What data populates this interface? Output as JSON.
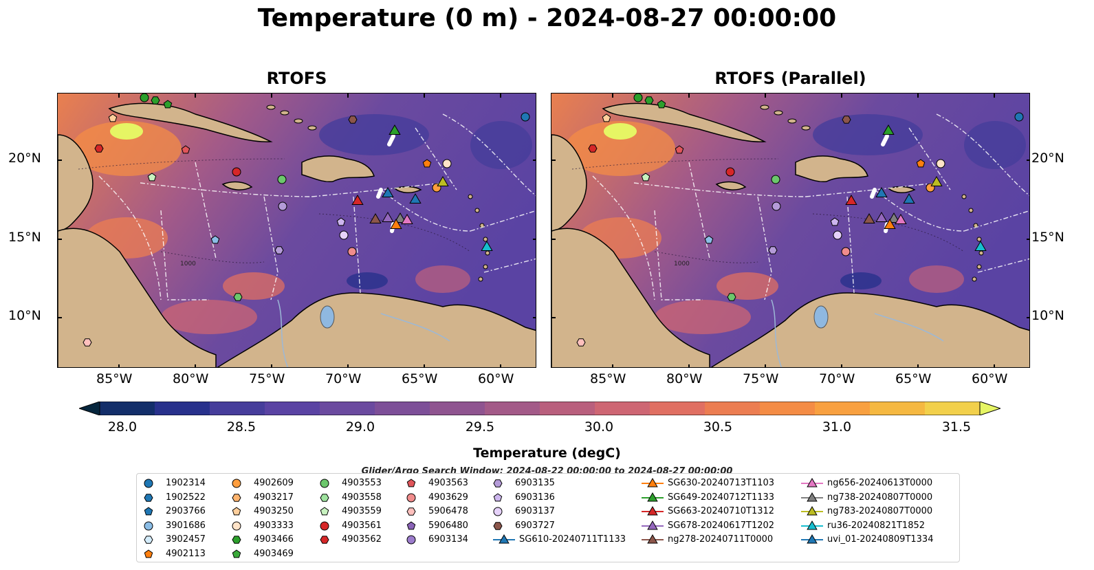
{
  "title": "Temperature (0 m) - 2024-08-27 00:00:00",
  "panels": [
    {
      "title": "RTOFS"
    },
    {
      "title": "RTOFS (Parallel)"
    }
  ],
  "axes": {
    "lat_labels": [
      "20°N",
      "15°N",
      "10°N"
    ],
    "lon_labels": [
      "85°W",
      "80°W",
      "75°W",
      "70°W",
      "65°W",
      "60°W"
    ]
  },
  "map_annotation": "1000",
  "colorbar": {
    "title": "Temperature (degC)",
    "tick_labels": [
      "28.0",
      "28.5",
      "29.0",
      "29.5",
      "30.0",
      "30.5",
      "31.0",
      "31.5"
    ],
    "colors": [
      "#06263d",
      "#132e6a",
      "#28318c",
      "#463d9b",
      "#5a43a3",
      "#6b4a9f",
      "#7d4f98",
      "#8f5490",
      "#a35a88",
      "#b95f7d",
      "#ce6673",
      "#e06f62",
      "#ec7d51",
      "#f48c45",
      "#f8a040",
      "#f5b841",
      "#f2d04b",
      "#e6f564"
    ]
  },
  "search_window": "Glider/Argo Search Window: 2024-08-22 00:00:00 to 2024-08-27 00:00:00",
  "legend": {
    "columns": [
      [
        {
          "label": "1902314",
          "marker": "circle",
          "color": "#1f77b4"
        },
        {
          "label": "1902522",
          "marker": "hexagon",
          "color": "#1f77b4"
        },
        {
          "label": "2903766",
          "marker": "pentagon",
          "color": "#1f77b4"
        },
        {
          "label": "3901686",
          "marker": "circle",
          "color": "#8bbde6"
        },
        {
          "label": "3902457",
          "marker": "hexagon",
          "color": "#d4ecfb"
        },
        {
          "label": "4902113",
          "marker": "pentagon",
          "color": "#ff7f0e"
        }
      ],
      [
        {
          "label": "4902609",
          "marker": "circle",
          "color": "#ff9e3e"
        },
        {
          "label": "4903217",
          "marker": "hexagon",
          "color": "#ffb46e"
        },
        {
          "label": "4903250",
          "marker": "pentagon",
          "color": "#ffcf9c"
        },
        {
          "label": "4903333",
          "marker": "circle",
          "color": "#ffe3c8"
        },
        {
          "label": "4903466",
          "marker": "hexagon",
          "color": "#2ca02c"
        },
        {
          "label": "4903469",
          "marker": "pentagon",
          "color": "#3aaa3a"
        }
      ],
      [
        {
          "label": "4903553",
          "marker": "circle",
          "color": "#6cc76c"
        },
        {
          "label": "4903558",
          "marker": "hexagon",
          "color": "#9ee29e"
        },
        {
          "label": "4903559",
          "marker": "pentagon",
          "color": "#c8f2c0"
        },
        {
          "label": "4903561",
          "marker": "circle",
          "color": "#d62728"
        },
        {
          "label": "4903562",
          "marker": "hexagon",
          "color": "#d62728"
        }
      ],
      [
        {
          "label": "4903563",
          "marker": "pentagon",
          "color": "#e0555a"
        },
        {
          "label": "4903629",
          "marker": "circle",
          "color": "#f08c8c"
        },
        {
          "label": "5906478",
          "marker": "hexagon",
          "color": "#ffc0bd"
        },
        {
          "label": "5906480",
          "marker": "pentagon",
          "color": "#8a63b7"
        },
        {
          "label": "6903134",
          "marker": "circle",
          "color": "#9c7ccc"
        }
      ],
      [
        {
          "label": "6903135",
          "marker": "hexagon",
          "color": "#b49bd8"
        },
        {
          "label": "6903136",
          "marker": "pentagon",
          "color": "#cdb6ee"
        },
        {
          "label": "6903137",
          "marker": "circle",
          "color": "#e6d2fa"
        },
        {
          "label": "6903727",
          "marker": "hexagon",
          "color": "#8c564b"
        },
        {
          "label": "SG610-20240711T1133",
          "marker": "triangle-line",
          "color": "#1f77b4"
        }
      ],
      [
        {
          "label": "SG630-20240713T1103",
          "marker": "triangle-line",
          "color": "#ff7f0e"
        },
        {
          "label": "SG649-20240712T1133",
          "marker": "triangle-line",
          "color": "#2ca02c"
        },
        {
          "label": "SG663-20240710T1312",
          "marker": "triangle-line",
          "color": "#d62728"
        },
        {
          "label": "SG678-20240617T1202",
          "marker": "triangle-line",
          "color": "#9467bd"
        },
        {
          "label": "ng278-20240711T0000",
          "marker": "triangle-line",
          "color": "#8c564b"
        }
      ],
      [
        {
          "label": "ng656-20240613T0000",
          "marker": "triangle-line",
          "color": "#e377c2"
        },
        {
          "label": "ng738-20240807T0000",
          "marker": "triangle-line",
          "color": "#7f7f7f"
        },
        {
          "label": "ng783-20240807T0000",
          "marker": "triangle-line",
          "color": "#bcbd22"
        },
        {
          "label": "ru36-20240821T1852",
          "marker": "triangle-line",
          "color": "#17becf"
        },
        {
          "label": "uvi_01-20240809T1334",
          "marker": "triangle-line",
          "color": "#1f77b4"
        }
      ]
    ]
  }
}
